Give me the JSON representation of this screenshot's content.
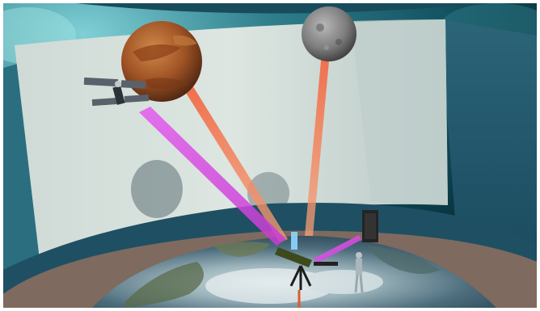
{
  "scene": {
    "objects": [
      "sky-dome",
      "curved-projection-screen",
      "mars-planet",
      "mercury-planet",
      "satellite",
      "earth-globe-floor",
      "telescope",
      "human-figure",
      "speaker-box"
    ],
    "colors": {
      "sky_dark": "#0a3a46",
      "sky_light": "#5fb5bf",
      "screen": "#d8e2dd",
      "dome_wall": "#2a5e73",
      "floor_rim": "#806e63",
      "mars": "#a65a26",
      "mercury": "#8a8a8a",
      "orange_beam": "#f06b4a",
      "magenta_beam": "#e24fe8",
      "earth_ocean": "#3a5e74",
      "earth_ice": "#d9e3e6"
    }
  }
}
